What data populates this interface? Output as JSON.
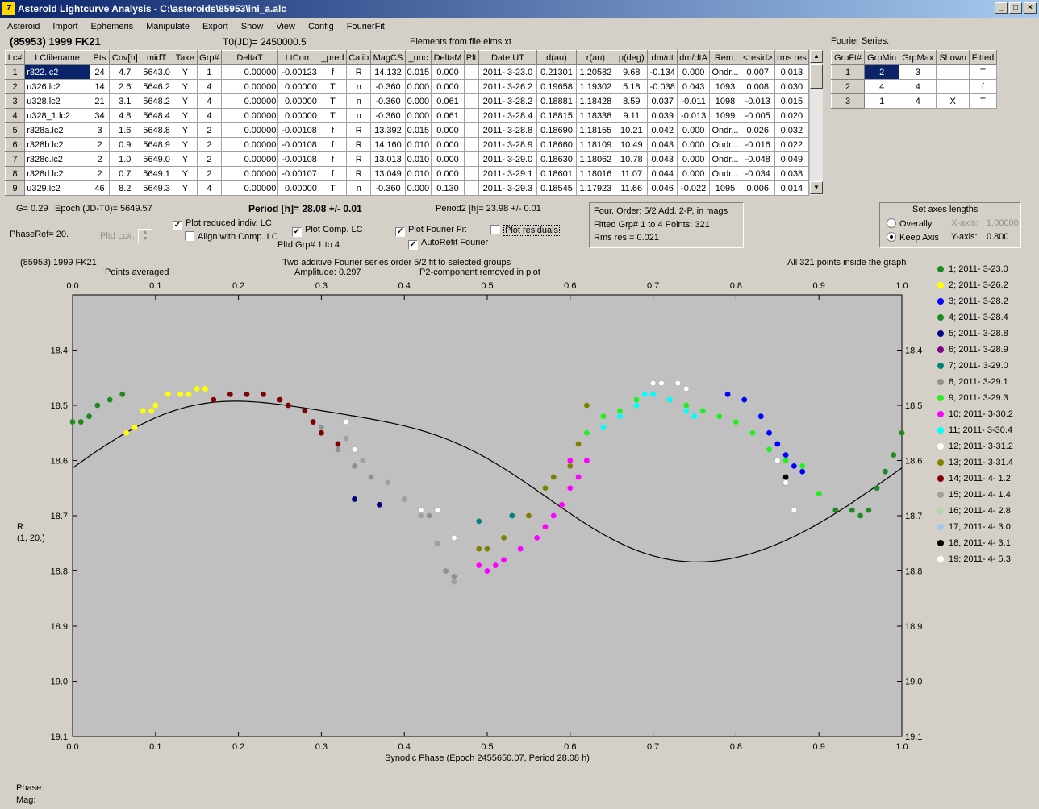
{
  "window": {
    "title": "Asteroid Lightcurve Analysis - C:\\asteroids\\85953\\ini_a.alc",
    "icon": "app-icon",
    "buttons": [
      "_",
      "□",
      "×"
    ]
  },
  "menu": [
    "Asteroid",
    "Import",
    "Ephemeris",
    "Manipulate",
    "Export",
    "Show",
    "View",
    "Config",
    "FourierFit"
  ],
  "header": {
    "asteroid": "(85953) 1999 FK21",
    "t0": "T0(JD)= 2450000.5",
    "elements": "Elements from file elms.xt",
    "fourier_label": "Fourier Series:"
  },
  "lc_table": {
    "columns": [
      "Lc#",
      "LCfilename",
      "Pts",
      "Cov[h]",
      "midT",
      "Take",
      "Grp#",
      "DeltaT",
      "LtCorr.",
      "_pred",
      "Calib",
      "MagCS",
      "_unc",
      "DeltaM",
      "Plt",
      "Date UT",
      "d(au)",
      "r(au)",
      "p(deg)",
      "dm/dt",
      "dm/dtA",
      "Rem.",
      "<resid>",
      "rms res"
    ],
    "rows": [
      [
        "1",
        "r322.lc2",
        "24",
        "4.7",
        "5643.0",
        "Y",
        "1",
        "0.00000",
        "-0.00123",
        "f",
        "R",
        "14.132",
        "0.015",
        "0.000",
        "",
        "2011- 3-23.0",
        "0.21301",
        "1.20582",
        "9.68",
        "-0.134",
        "0.000",
        "Ondr...",
        "0.007",
        "0.013"
      ],
      [
        "2",
        "u326.lc2",
        "14",
        "2.6",
        "5646.2",
        "Y",
        "4",
        "0.00000",
        "0.00000",
        "T",
        "n",
        "-0.360",
        "0.000",
        "0.000",
        "",
        "2011- 3-26.2",
        "0.19658",
        "1.19302",
        "5.18",
        "-0.038",
        "0.043",
        "1093",
        "0.008",
        "0.030"
      ],
      [
        "3",
        "u328.lc2",
        "21",
        "3.1",
        "5648.2",
        "Y",
        "4",
        "0.00000",
        "0.00000",
        "T",
        "n",
        "-0.360",
        "0.000",
        "0.061",
        "",
        "2011- 3-28.2",
        "0.18881",
        "1.18428",
        "8.59",
        "0.037",
        "-0.011",
        "1098",
        "-0.013",
        "0.015"
      ],
      [
        "4",
        "u328_1.lc2",
        "34",
        "4.8",
        "5648.4",
        "Y",
        "4",
        "0.00000",
        "0.00000",
        "T",
        "n",
        "-0.360",
        "0.000",
        "0.061",
        "",
        "2011- 3-28.4",
        "0.18815",
        "1.18338",
        "9.11",
        "0.039",
        "-0.013",
        "1099",
        "-0.005",
        "0.020"
      ],
      [
        "5",
        "r328a.lc2",
        "3",
        "1.6",
        "5648.8",
        "Y",
        "2",
        "0.00000",
        "-0.00108",
        "f",
        "R",
        "13.392",
        "0.015",
        "0.000",
        "",
        "2011- 3-28.8",
        "0.18690",
        "1.18155",
        "10.21",
        "0.042",
        "0.000",
        "Ondr...",
        "0.026",
        "0.032"
      ],
      [
        "6",
        "r328b.lc2",
        "2",
        "0.9",
        "5648.9",
        "Y",
        "2",
        "0.00000",
        "-0.00108",
        "f",
        "R",
        "14.160",
        "0.010",
        "0.000",
        "",
        "2011- 3-28.9",
        "0.18660",
        "1.18109",
        "10.49",
        "0.043",
        "0.000",
        "Ondr...",
        "-0.016",
        "0.022"
      ],
      [
        "7",
        "r328c.lc2",
        "2",
        "1.0",
        "5649.0",
        "Y",
        "2",
        "0.00000",
        "-0.00108",
        "f",
        "R",
        "13.013",
        "0.010",
        "0.000",
        "",
        "2011- 3-29.0",
        "0.18630",
        "1.18062",
        "10.78",
        "0.043",
        "0.000",
        "Ondr...",
        "-0.048",
        "0.049"
      ],
      [
        "8",
        "r328d.lc2",
        "2",
        "0.7",
        "5649.1",
        "Y",
        "2",
        "0.00000",
        "-0.00107",
        "f",
        "R",
        "13.049",
        "0.010",
        "0.000",
        "",
        "2011- 3-29.1",
        "0.18601",
        "1.18016",
        "11.07",
        "0.044",
        "0.000",
        "Ondr...",
        "-0.034",
        "0.038"
      ],
      [
        "9",
        "u329.lc2",
        "46",
        "8.2",
        "5649.3",
        "Y",
        "4",
        "0.00000",
        "0.00000",
        "T",
        "n",
        "-0.360",
        "0.000",
        "0.130",
        "",
        "2011- 3-29.3",
        "0.18545",
        "1.17923",
        "11.66",
        "0.046",
        "-0.022",
        "1095",
        "0.006",
        "0.014"
      ]
    ]
  },
  "fourier_table": {
    "columns": [
      "GrpFt#",
      "GrpMin",
      "GrpMax",
      "Shown",
      "Fitted"
    ],
    "rows": [
      [
        "1",
        "2",
        "3",
        "",
        "T"
      ],
      [
        "2",
        "4",
        "4",
        "",
        "f"
      ],
      [
        "3",
        "1",
        "4",
        "X",
        "T"
      ]
    ]
  },
  "controls": {
    "g": "G= 0.29",
    "epoch": "Epoch (JD-T0)= 5649.57",
    "period": "Period [h]= 28.08 +/- 0.01",
    "period2": "Period2 [h]= 23.98 +/- 0.01",
    "phaseref": "PhaseRef= 20.",
    "pltd_lc": "Pltd Lc#:",
    "pltd_grp": "Pltd Grp#  1   to   4",
    "plot_reduced": "Plot reduced indiv. LC",
    "align": "Align with Comp. LC",
    "plot_comp": "Plot Comp. LC",
    "plot_fourier": "Plot Fourier Fit",
    "autorefit": "AutoRefit Fourier",
    "plot_residuals": "Plot residuals",
    "info1": "Four. Order:  5/2      Add. 2-P, in mags",
    "info2": "Fitted Grp# 1 to 4      Points: 321",
    "info3": "Rms res      = 0.021",
    "axes_title": "Set axes lengths",
    "overally": "Overally",
    "keep_axis": "Keep Axis",
    "xaxis_lbl": "X-axis:",
    "xaxis_val": "1.00000",
    "yaxis_lbl": "Y-axis:",
    "yaxis_val": "0.800"
  },
  "plot_header": {
    "name": "(85953) 1999 FK21",
    "desc1": "Two additive Fourier series order 5/2 fit to selected groups",
    "desc2": "Amplitude: 0.297",
    "desc3": "P2-component removed in plot",
    "points_avg": "Points averaged",
    "inside": "All 321 points inside the graph"
  },
  "chart_data": {
    "type": "scatter",
    "xlabel": "Synodic Phase (Epoch 2455650.07, Period 28.08 h)",
    "ylabel": "R",
    "ylabel2": "(1, 20.)",
    "xlim": [
      0,
      1
    ],
    "ylim": [
      18.3,
      19.1
    ],
    "xticks": [
      "0.0",
      "0.1",
      "0.2",
      "0.3",
      "0.4",
      "0.5",
      "0.6",
      "0.7",
      "0.8",
      "0.9",
      "1.0"
    ],
    "yticks": [
      "18.4",
      "18.5",
      "18.6",
      "18.7",
      "18.8",
      "18.9",
      "19.0",
      "19.1"
    ],
    "fit": {
      "mean": 18.623,
      "terms": [
        [
          0.145,
          1.55
        ],
        [
          0.02,
          2.7
        ],
        [
          0.006,
          0.4
        ]
      ]
    },
    "series": [
      {
        "name": "1; 2011- 3-23.0",
        "color": "#1f8a1f",
        "points": [
          [
            0.0,
            18.53
          ],
          [
            0.01,
            18.53
          ],
          [
            0.02,
            18.52
          ],
          [
            0.03,
            18.5
          ],
          [
            0.045,
            18.49
          ],
          [
            0.06,
            18.48
          ]
        ]
      },
      {
        "name": "2; 2011- 3-26.2",
        "color": "#ffff00",
        "points": [
          [
            0.065,
            18.55
          ],
          [
            0.075,
            18.54
          ],
          [
            0.085,
            18.51
          ],
          [
            0.095,
            18.51
          ],
          [
            0.1,
            18.5
          ],
          [
            0.115,
            18.48
          ],
          [
            0.13,
            18.48
          ],
          [
            0.14,
            18.48
          ],
          [
            0.15,
            18.47
          ],
          [
            0.16,
            18.47
          ]
        ]
      },
      {
        "name": "3; 2011- 3-28.2",
        "color": "#0000ff",
        "points": [
          [
            0.79,
            18.48
          ],
          [
            0.81,
            18.49
          ],
          [
            0.83,
            18.52
          ],
          [
            0.84,
            18.55
          ],
          [
            0.85,
            18.57
          ],
          [
            0.86,
            18.59
          ],
          [
            0.87,
            18.61
          ],
          [
            0.88,
            18.62
          ]
        ]
      },
      {
        "name": "4; 2011- 3-28.4",
        "color": "#1f8a1f",
        "points": [
          [
            0.9,
            18.66
          ],
          [
            0.92,
            18.69
          ],
          [
            0.94,
            18.69
          ],
          [
            0.95,
            18.7
          ],
          [
            0.96,
            18.69
          ],
          [
            0.97,
            18.65
          ],
          [
            0.98,
            18.62
          ],
          [
            0.99,
            18.59
          ],
          [
            1.0,
            18.55
          ]
        ]
      },
      {
        "name": "5; 2011- 3-28.8",
        "color": "#000080",
        "points": [
          [
            0.34,
            18.67
          ],
          [
            0.37,
            18.68
          ],
          [
            0.44,
            18.75
          ]
        ]
      },
      {
        "name": "6; 2011- 3-28.9",
        "color": "#800080",
        "points": []
      },
      {
        "name": "7; 2011- 3-29.0",
        "color": "#008080",
        "points": [
          [
            0.49,
            18.71
          ],
          [
            0.53,
            18.7
          ]
        ]
      },
      {
        "name": "8; 2011- 3-29.1",
        "color": "#909090",
        "points": [
          [
            0.3,
            18.54
          ],
          [
            0.32,
            18.58
          ],
          [
            0.34,
            18.61
          ],
          [
            0.36,
            18.63
          ],
          [
            0.4,
            18.67
          ],
          [
            0.43,
            18.7
          ],
          [
            0.45,
            18.8
          ],
          [
            0.46,
            18.81
          ]
        ]
      },
      {
        "name": "9; 2011- 3-29.3",
        "color": "#22ee22",
        "points": [
          [
            0.62,
            18.55
          ],
          [
            0.64,
            18.52
          ],
          [
            0.66,
            18.51
          ],
          [
            0.68,
            18.49
          ],
          [
            0.72,
            18.49
          ],
          [
            0.74,
            18.5
          ],
          [
            0.76,
            18.51
          ],
          [
            0.78,
            18.52
          ],
          [
            0.8,
            18.53
          ],
          [
            0.82,
            18.55
          ],
          [
            0.84,
            18.58
          ],
          [
            0.86,
            18.6
          ],
          [
            0.88,
            18.61
          ],
          [
            0.9,
            18.66
          ]
        ]
      },
      {
        "name": "10; 2011- 3-30.2",
        "color": "#ff00ff",
        "points": [
          [
            0.49,
            18.79
          ],
          [
            0.5,
            18.8
          ],
          [
            0.51,
            18.79
          ],
          [
            0.52,
            18.78
          ],
          [
            0.54,
            18.76
          ],
          [
            0.56,
            18.74
          ],
          [
            0.57,
            18.72
          ],
          [
            0.58,
            18.7
          ],
          [
            0.59,
            18.68
          ],
          [
            0.6,
            18.65
          ],
          [
            0.61,
            18.63
          ],
          [
            0.6,
            18.6
          ],
          [
            0.62,
            18.6
          ]
        ]
      },
      {
        "name": "11; 2011- 3-30.4",
        "color": "#00ffff",
        "points": [
          [
            0.64,
            18.54
          ],
          [
            0.66,
            18.52
          ],
          [
            0.68,
            18.5
          ],
          [
            0.69,
            18.48
          ],
          [
            0.7,
            18.48
          ],
          [
            0.72,
            18.49
          ],
          [
            0.74,
            18.51
          ],
          [
            0.75,
            18.52
          ]
        ]
      },
      {
        "name": "12; 2011- 3-31.2",
        "color": "#ffffff",
        "points": [
          [
            0.33,
            18.53
          ],
          [
            0.34,
            18.58
          ],
          [
            0.42,
            18.69
          ],
          [
            0.44,
            18.69
          ],
          [
            0.46,
            18.74
          ],
          [
            0.7,
            18.46
          ],
          [
            0.71,
            18.46
          ],
          [
            0.73,
            18.46
          ],
          [
            0.74,
            18.47
          ],
          [
            0.85,
            18.6
          ],
          [
            0.86,
            18.64
          ],
          [
            0.87,
            18.69
          ]
        ]
      },
      {
        "name": "13; 2011- 3-31.4",
        "color": "#808000",
        "points": [
          [
            0.49,
            18.76
          ],
          [
            0.5,
            18.76
          ],
          [
            0.52,
            18.74
          ],
          [
            0.55,
            18.7
          ],
          [
            0.57,
            18.65
          ],
          [
            0.58,
            18.63
          ],
          [
            0.6,
            18.61
          ],
          [
            0.62,
            18.5
          ],
          [
            0.61,
            18.57
          ]
        ]
      },
      {
        "name": "14; 2011- 4- 1.2",
        "color": "#800000",
        "points": [
          [
            0.17,
            18.49
          ],
          [
            0.19,
            18.48
          ],
          [
            0.21,
            18.48
          ],
          [
            0.23,
            18.48
          ],
          [
            0.25,
            18.49
          ],
          [
            0.26,
            18.5
          ],
          [
            0.28,
            18.51
          ],
          [
            0.29,
            18.53
          ],
          [
            0.3,
            18.55
          ],
          [
            0.32,
            18.57
          ]
        ]
      },
      {
        "name": "15; 2011- 4- 1.4",
        "color": "#a0a0a0",
        "points": [
          [
            0.33,
            18.56
          ],
          [
            0.35,
            18.6
          ],
          [
            0.38,
            18.64
          ],
          [
            0.4,
            18.67
          ],
          [
            0.42,
            18.7
          ],
          [
            0.44,
            18.75
          ],
          [
            0.46,
            18.82
          ]
        ]
      },
      {
        "name": "16; 2011- 4- 2.8",
        "color": "#b0d8b0",
        "points": []
      },
      {
        "name": "17; 2011- 4- 3.0",
        "color": "#a0c8e8",
        "points": []
      },
      {
        "name": "18; 2011- 4- 3.1",
        "color": "#000000",
        "points": [
          [
            0.86,
            18.63
          ]
        ]
      },
      {
        "name": "19; 2011- 4- 5.3",
        "color": "#ffffff",
        "points": []
      }
    ]
  }
}
